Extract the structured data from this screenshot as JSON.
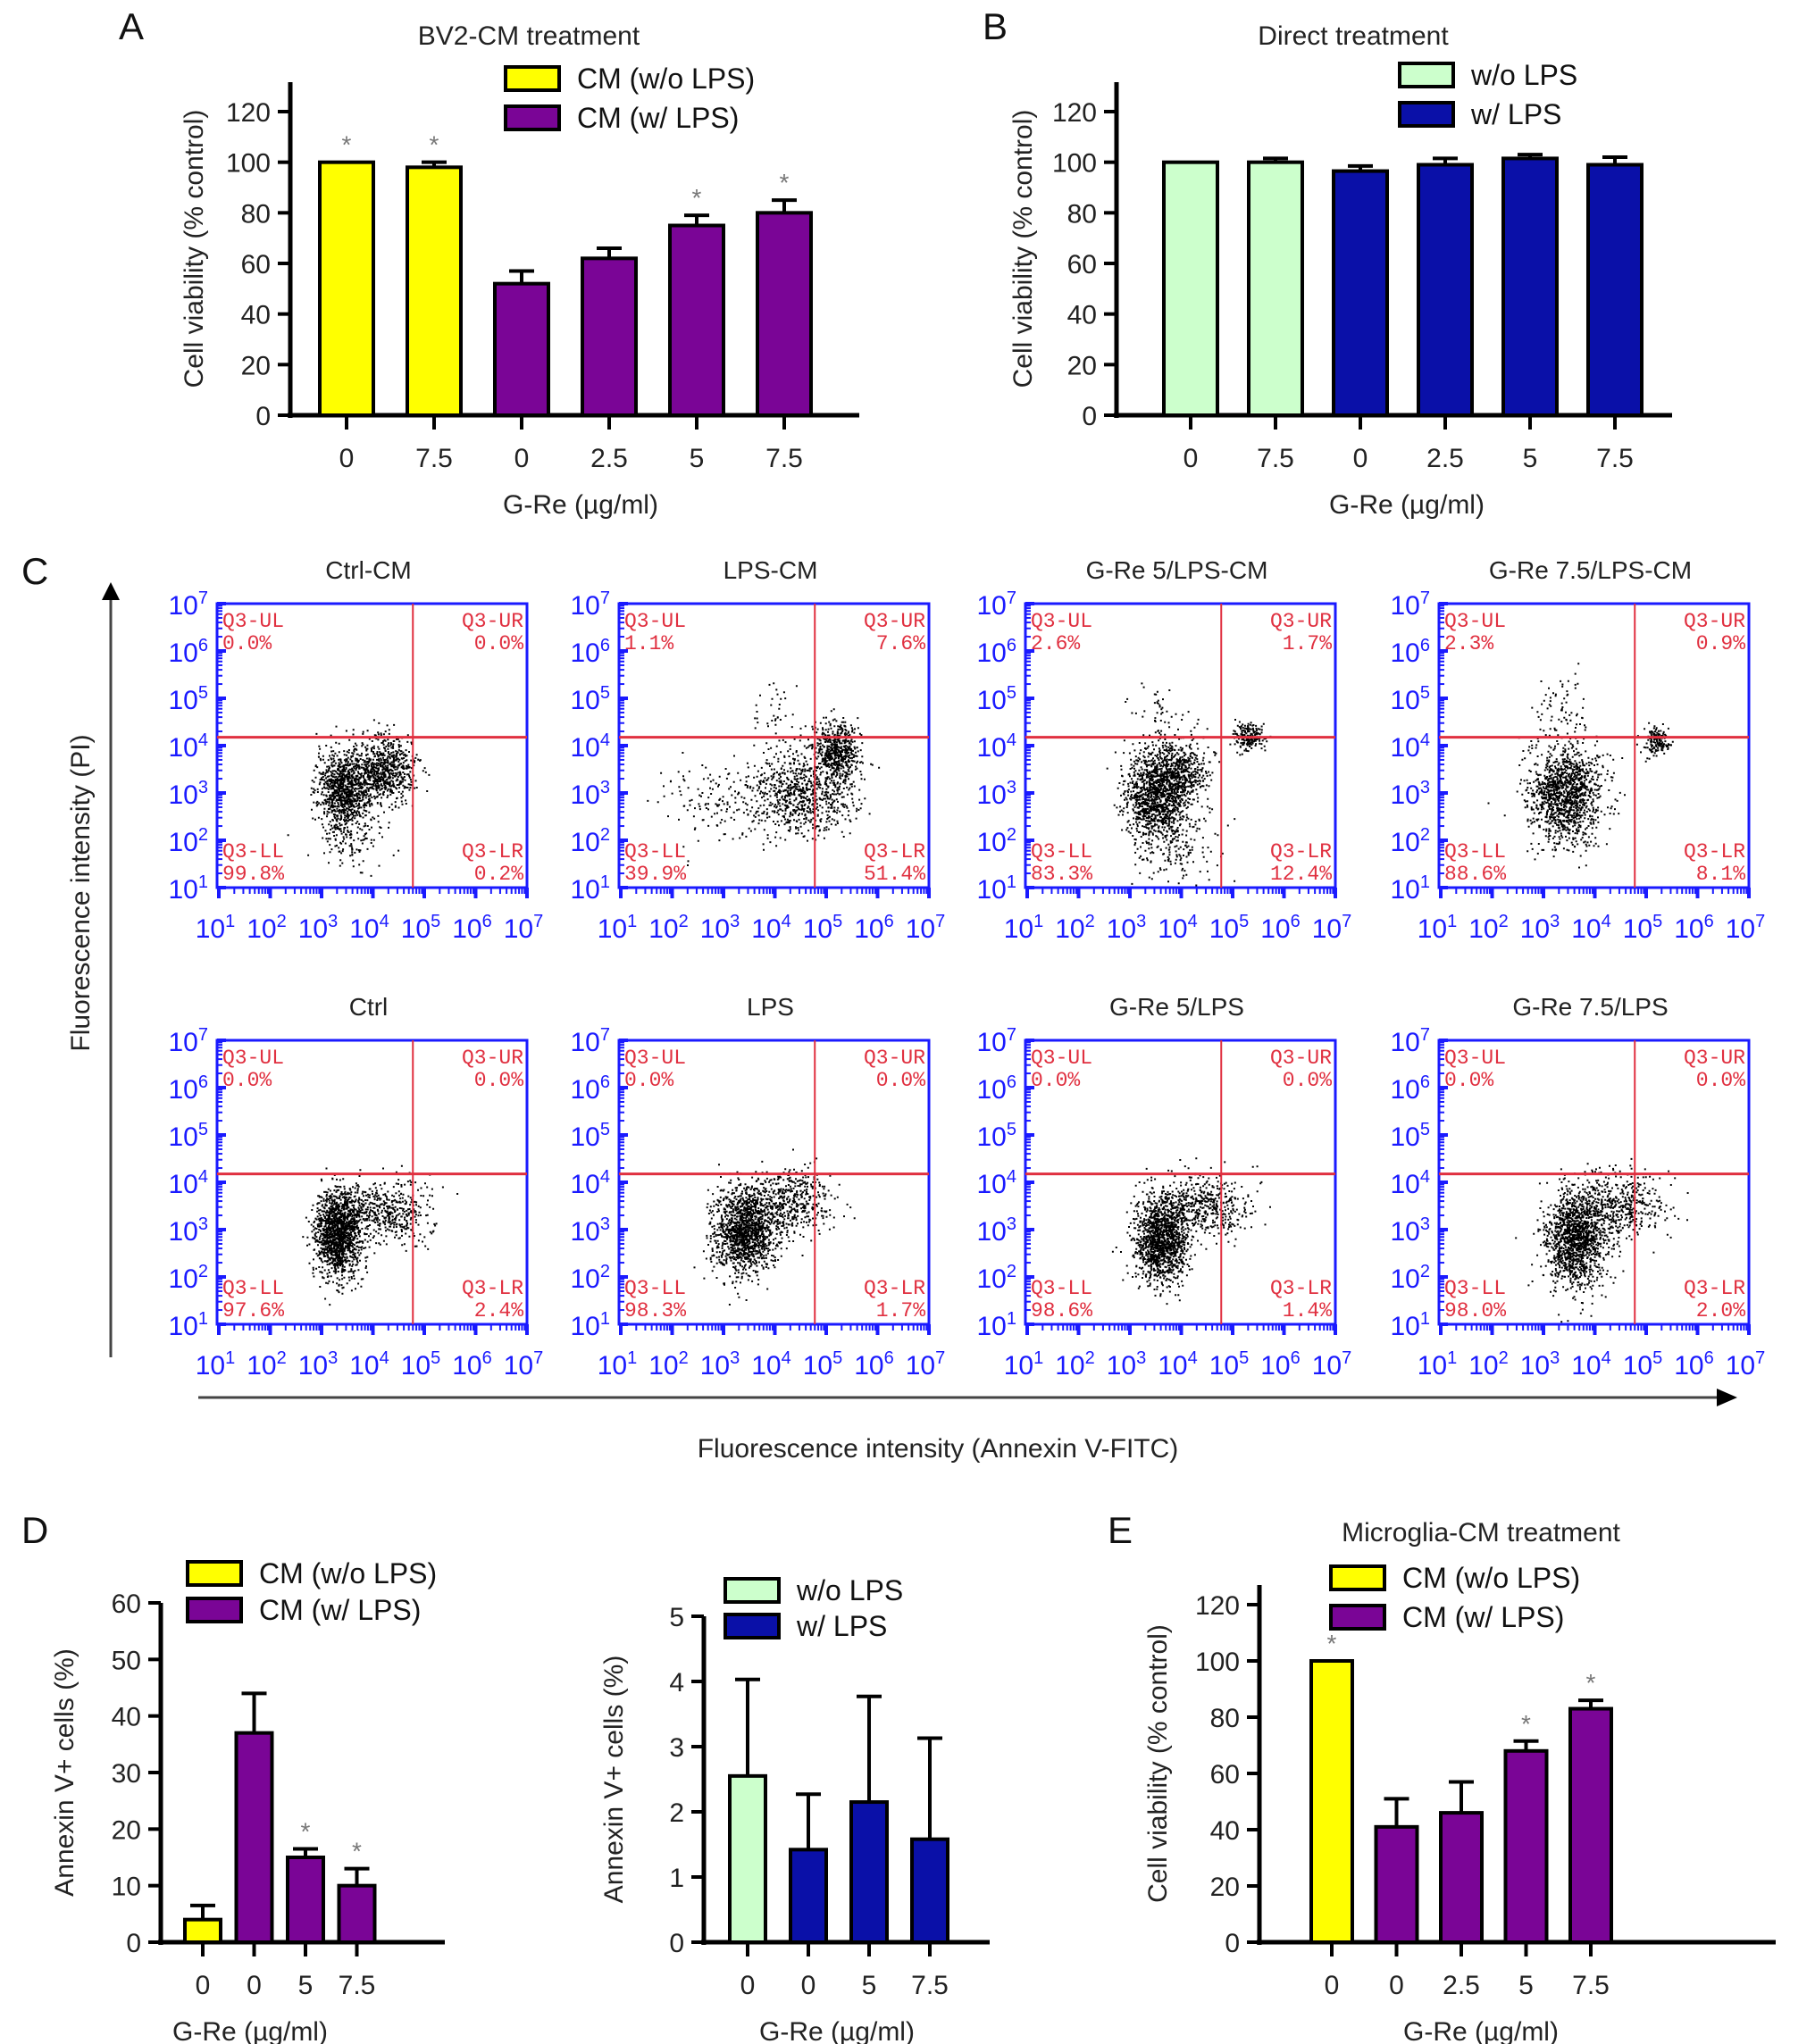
{
  "figure": {
    "panel_letters": [
      "A",
      "B",
      "C",
      "D",
      "E"
    ]
  },
  "chart_data": [
    {
      "id": "A",
      "type": "bar",
      "title": "BV2-CM treatment",
      "xlabel": "G-Re (µg/ml)",
      "ylabel": "Cell viability (% control)",
      "ylim": [
        0,
        130
      ],
      "yticks": [
        0,
        20,
        40,
        60,
        80,
        100,
        120
      ],
      "categories": [
        "0",
        "7.5",
        "0",
        "2.5",
        "5",
        "7.5"
      ],
      "values": [
        100,
        98,
        52,
        62,
        75,
        80
      ],
      "errors": [
        0,
        2,
        5,
        4,
        4,
        5
      ],
      "groups": [
        0,
        0,
        1,
        1,
        1,
        1
      ],
      "significant": [
        true,
        true,
        false,
        false,
        true,
        true
      ],
      "legend": [
        {
          "label": "CM (w/o LPS)",
          "color": "#ffff00"
        },
        {
          "label": "CM (w/ LPS)",
          "color": "#7a0596"
        }
      ],
      "legend_position": "top-right"
    },
    {
      "id": "B",
      "type": "bar",
      "title": "Direct treatment",
      "xlabel": "G-Re (µg/ml)",
      "ylabel": "Cell viability (% control)",
      "ylim": [
        0,
        130
      ],
      "yticks": [
        0,
        20,
        40,
        60,
        80,
        100,
        120
      ],
      "categories": [
        "0",
        "7.5",
        "0",
        "2.5",
        "5",
        "7.5"
      ],
      "values": [
        100,
        100,
        96.5,
        99,
        101.5,
        99
      ],
      "errors": [
        0,
        1.5,
        2,
        2.5,
        1.5,
        3
      ],
      "groups": [
        0,
        0,
        1,
        1,
        1,
        1
      ],
      "significant": [
        false,
        false,
        false,
        false,
        false,
        false
      ],
      "legend": [
        {
          "label": "w/o LPS",
          "color": "#ccffcc"
        },
        {
          "label": "w/ LPS",
          "color": "#0a10a8"
        }
      ],
      "legend_position": "top-right"
    },
    {
      "id": "C",
      "type": "scatter",
      "subtype": "flow-cytometry-quadrant",
      "xlabel": "Fluorescence intensity (Annexin V-FITC)",
      "ylabel": "Fluorescence intensity (PI)",
      "xscale": "log",
      "yscale": "log",
      "xlim": [
        10,
        10000000
      ],
      "ylim": [
        10,
        10000000
      ],
      "xticks": [
        "10",
        "10",
        "10",
        "10",
        "10",
        "10",
        "10"
      ],
      "tick_exponents": [
        "1",
        "2",
        "3",
        "4",
        "5",
        "6",
        "7"
      ],
      "gate": {
        "x": 60000,
        "y": 15000
      },
      "quadrant_labels": [
        "Q3-UL",
        "Q3-UR",
        "Q3-LL",
        "Q3-LR"
      ],
      "plots": [
        {
          "title": "Ctrl-CM",
          "UL": "0.0%",
          "UR": "0.0%",
          "LL": "99.8%",
          "LR": "0.2%"
        },
        {
          "title": "LPS-CM",
          "UL": "1.1%",
          "UR": "7.6%",
          "LL": "39.9%",
          "LR": "51.4%"
        },
        {
          "title": "G-Re 5/LPS-CM",
          "UL": "2.6%",
          "UR": "1.7%",
          "LL": "83.3%",
          "LR": "12.4%"
        },
        {
          "title": "G-Re 7.5/LPS-CM",
          "UL": "2.3%",
          "UR": "0.9%",
          "LL": "88.6%",
          "LR": "8.1%"
        },
        {
          "title": "Ctrl",
          "UL": "0.0%",
          "UR": "0.0%",
          "LL": "97.6%",
          "LR": "2.4%"
        },
        {
          "title": "LPS",
          "UL": "0.0%",
          "UR": "0.0%",
          "LL": "98.3%",
          "LR": "1.7%"
        },
        {
          "title": "G-Re 5/LPS",
          "UL": "0.0%",
          "UR": "0.0%",
          "LL": "98.6%",
          "LR": "1.4%"
        },
        {
          "title": "G-Re 7.5/LPS",
          "UL": "0.0%",
          "UR": "0.0%",
          "LL": "98.0%",
          "LR": "2.0%"
        }
      ],
      "colors": {
        "axis": "#1a1aff",
        "gate": "#e03040",
        "points": "#000000"
      }
    },
    {
      "id": "D-left",
      "type": "bar",
      "title": "",
      "xlabel": "G-Re (µg/ml)",
      "ylabel": "Annexin V+ cells (%)",
      "ylim": [
        0,
        60
      ],
      "yticks": [
        0,
        10,
        20,
        30,
        40,
        50,
        60
      ],
      "categories": [
        "0",
        "0",
        "5",
        "7.5"
      ],
      "values": [
        4,
        37,
        15,
        10
      ],
      "errors": [
        2.5,
        7,
        1.5,
        3
      ],
      "groups": [
        0,
        1,
        1,
        1
      ],
      "significant": [
        false,
        false,
        true,
        true
      ],
      "legend": [
        {
          "label": "CM (w/o LPS)",
          "color": "#ffff00"
        },
        {
          "label": "CM (w/ LPS)",
          "color": "#7a0596"
        }
      ],
      "legend_position": "top"
    },
    {
      "id": "D-right",
      "type": "bar",
      "title": "",
      "xlabel": "G-Re (µg/ml)",
      "ylabel": "Annexin V+ cells (%)",
      "ylim": [
        0,
        5
      ],
      "yticks": [
        0,
        1,
        2,
        3,
        4,
        5
      ],
      "categories": [
        "0",
        "0",
        "5",
        "7.5"
      ],
      "values": [
        2.55,
        1.42,
        2.15,
        1.58
      ],
      "errors": [
        1.48,
        0.85,
        1.62,
        1.55
      ],
      "groups": [
        0,
        1,
        1,
        1
      ],
      "significant": [
        false,
        false,
        false,
        false
      ],
      "legend": [
        {
          "label": "w/o LPS",
          "color": "#ccffcc"
        },
        {
          "label": "w/ LPS",
          "color": "#0a10a8"
        }
      ],
      "legend_position": "top"
    },
    {
      "id": "E",
      "type": "bar",
      "title": "Microglia-CM treatment",
      "xlabel": "G-Re (µg/ml)",
      "ylabel": "Cell viability (% control)",
      "ylim": [
        0,
        130
      ],
      "yticks": [
        0,
        20,
        40,
        60,
        80,
        100,
        120
      ],
      "categories": [
        "0",
        "0",
        "2.5",
        "5",
        "7.5"
      ],
      "values": [
        100,
        41,
        46,
        68,
        83
      ],
      "errors": [
        0,
        10,
        11,
        3.5,
        3
      ],
      "groups": [
        0,
        1,
        1,
        1,
        1
      ],
      "significant": [
        true,
        false,
        false,
        true,
        true
      ],
      "legend": [
        {
          "label": "CM (w/o LPS)",
          "color": "#ffff00"
        },
        {
          "label": "CM (w/ LPS)",
          "color": "#7a0596"
        }
      ],
      "legend_position": "top-right"
    }
  ]
}
